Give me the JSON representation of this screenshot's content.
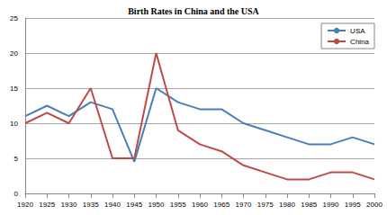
{
  "chart_data": {
    "type": "line",
    "title": "Birth Rates in China and the USA",
    "categories": [
      "1920",
      "1925",
      "1930",
      "1935",
      "1940",
      "1945",
      "1950",
      "1955",
      "1960",
      "1965",
      "1970",
      "1975",
      "1980",
      "1985",
      "1990",
      "1995",
      "2000"
    ],
    "series": [
      {
        "name": "USA",
        "color": "#4a7ebb",
        "values": [
          11,
          12.5,
          11,
          13,
          12,
          4.5,
          15,
          13,
          12,
          12,
          10,
          9,
          8,
          7,
          7,
          8,
          7
        ]
      },
      {
        "name": "China",
        "color": "#be4b48",
        "values": [
          10,
          11.5,
          10,
          15,
          5,
          5,
          20,
          9,
          7,
          6,
          4,
          3,
          2,
          2,
          3,
          3,
          2
        ]
      }
    ],
    "ylim": [
      0,
      25
    ],
    "yticks": [
      0,
      5,
      10,
      15,
      20,
      25
    ],
    "grid": true,
    "legend": "upper right"
  }
}
